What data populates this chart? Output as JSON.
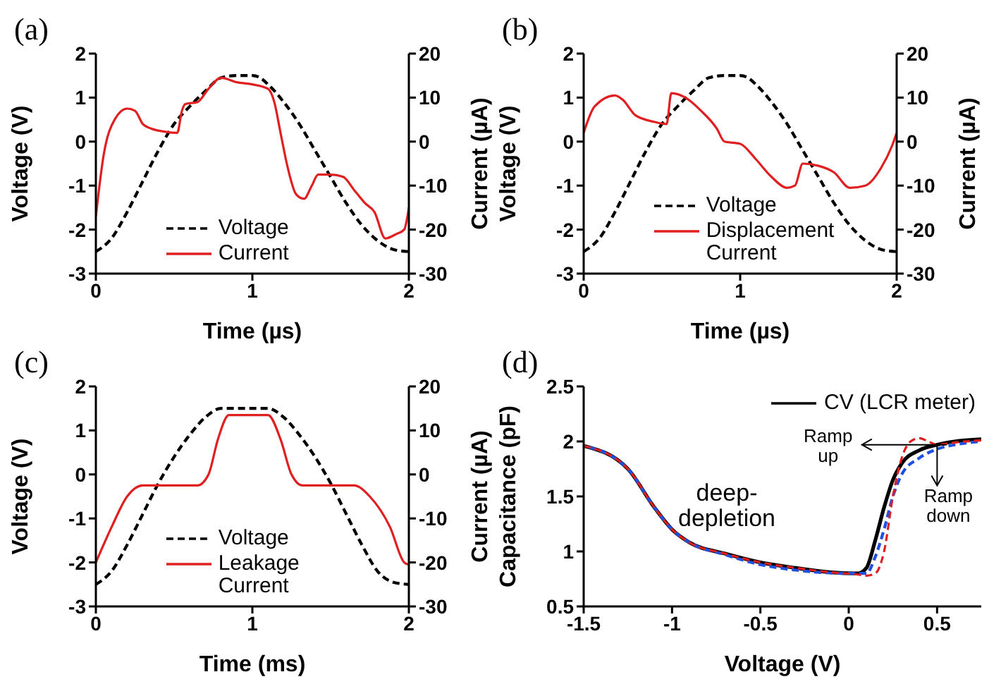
{
  "chart_data": [
    {
      "type": "line",
      "title": "(a)",
      "xlabel": "Time (µs)",
      "ylabel": "Voltage (V)",
      "y2label": "Current (µA)",
      "xlim": [
        0,
        2
      ],
      "xticks": [
        0,
        1,
        2
      ],
      "ylim": [
        -3,
        2
      ],
      "yticks": [
        -3,
        -2,
        -1,
        0,
        1,
        2
      ],
      "y2lim": [
        -30,
        20
      ],
      "y2ticks": [
        -30,
        -20,
        -10,
        0,
        10,
        20
      ],
      "legend": "bottom",
      "marker": "none",
      "series": [
        {
          "name": "Voltage",
          "color": "#000000",
          "line_style": "dashed",
          "x": [
            0,
            0.1,
            0.2,
            0.3,
            0.4,
            0.5,
            0.6,
            0.7,
            0.8,
            0.9,
            1.0,
            1.05,
            1.1,
            1.2,
            1.3,
            1.4,
            1.5,
            1.6,
            1.7,
            1.8,
            1.9,
            2.0
          ],
          "values": [
            -2.5,
            -2.2,
            -1.6,
            -0.9,
            -0.2,
            0.4,
            0.8,
            1.15,
            1.45,
            1.5,
            1.5,
            1.45,
            1.3,
            0.9,
            0.4,
            -0.2,
            -0.8,
            -1.4,
            -1.9,
            -2.25,
            -2.45,
            -2.5
          ]
        },
        {
          "name": "Current",
          "color": "#e02020",
          "line_style": "solid",
          "axis": "y2",
          "x": [
            0,
            0.05,
            0.12,
            0.2,
            0.25,
            0.3,
            0.35,
            0.45,
            0.52,
            0.55,
            0.57,
            0.65,
            0.72,
            0.8,
            0.9,
            1.0,
            1.1,
            1.14,
            1.18,
            1.22,
            1.28,
            1.33,
            1.38,
            1.42,
            1.5,
            1.58,
            1.65,
            1.72,
            1.78,
            1.85,
            1.92,
            1.97,
            2.0
          ],
          "values": [
            -17,
            -3,
            5,
            7.5,
            7,
            4,
            3,
            2.2,
            2,
            7,
            8.5,
            9,
            12,
            14.5,
            13.5,
            13,
            12,
            9,
            2,
            -5,
            -12,
            -13,
            -10,
            -7.5,
            -7.5,
            -8,
            -11,
            -14,
            -16,
            -22,
            -21,
            -20,
            -15
          ]
        }
      ]
    },
    {
      "type": "line",
      "title": "(b)",
      "xlabel": "Time (µs)",
      "ylabel": "Voltage (V)",
      "y2label": "Current (µA)",
      "xlim": [
        0,
        2
      ],
      "xticks": [
        0,
        1,
        2
      ],
      "ylim": [
        -3,
        2
      ],
      "yticks": [
        -3,
        -2,
        -1,
        0,
        1,
        2
      ],
      "y2lim": [
        -30,
        20
      ],
      "y2ticks": [
        -30,
        -20,
        -10,
        0,
        10,
        20
      ],
      "legend": "bottom",
      "marker": "none",
      "series": [
        {
          "name": "Voltage",
          "color": "#000000",
          "line_style": "dashed",
          "x": [
            0,
            0.1,
            0.2,
            0.3,
            0.4,
            0.5,
            0.6,
            0.7,
            0.8,
            0.9,
            1.0,
            1.05,
            1.1,
            1.2,
            1.3,
            1.4,
            1.5,
            1.6,
            1.7,
            1.8,
            1.9,
            2.0
          ],
          "values": [
            -2.5,
            -2.2,
            -1.6,
            -0.9,
            -0.2,
            0.4,
            0.8,
            1.15,
            1.45,
            1.5,
            1.5,
            1.45,
            1.3,
            0.9,
            0.4,
            -0.2,
            -0.8,
            -1.4,
            -1.9,
            -2.25,
            -2.45,
            -2.5
          ]
        },
        {
          "name": "Displacement Current",
          "color": "#e02020",
          "line_style": "solid",
          "axis": "y2",
          "x": [
            0,
            0.07,
            0.2,
            0.25,
            0.33,
            0.45,
            0.53,
            0.56,
            0.65,
            0.75,
            0.85,
            0.9,
            1.0,
            1.1,
            1.2,
            1.3,
            1.35,
            1.4,
            1.5,
            1.6,
            1.7,
            1.8,
            1.9,
            1.97,
            2.0
          ],
          "values": [
            2,
            8,
            10.5,
            9.5,
            6,
            4.5,
            4,
            11,
            10,
            7,
            3,
            0,
            -0.5,
            -4,
            -8,
            -10.5,
            -10,
            -5,
            -5.5,
            -7,
            -10.5,
            -10,
            -6,
            -1,
            2
          ]
        }
      ]
    },
    {
      "type": "line",
      "title": "(c)",
      "xlabel": "Time (ms)",
      "ylabel": "Voltage (V)",
      "y2label": "Current (µA)",
      "xlim": [
        0,
        2
      ],
      "xticks": [
        0,
        1,
        2
      ],
      "ylim": [
        -3,
        2
      ],
      "yticks": [
        -3,
        -2,
        -1,
        0,
        1,
        2
      ],
      "y2lim": [
        -30,
        20
      ],
      "y2ticks": [
        -30,
        -20,
        -10,
        0,
        10,
        20
      ],
      "legend": "bottom",
      "marker": "none",
      "series": [
        {
          "name": "Voltage",
          "color": "#000000",
          "line_style": "dashed",
          "x": [
            0,
            0.1,
            0.2,
            0.3,
            0.4,
            0.5,
            0.6,
            0.7,
            0.8,
            0.9,
            1.0,
            1.1,
            1.2,
            1.3,
            1.4,
            1.5,
            1.6,
            1.7,
            1.8,
            1.9,
            2.0
          ],
          "values": [
            -2.5,
            -2.2,
            -1.6,
            -0.9,
            -0.2,
            0.4,
            0.9,
            1.3,
            1.5,
            1.5,
            1.5,
            1.5,
            1.3,
            0.9,
            0.4,
            -0.2,
            -0.9,
            -1.6,
            -2.2,
            -2.45,
            -2.5
          ]
        },
        {
          "name": "Leakage Current",
          "color": "#e02020",
          "line_style": "solid",
          "axis": "y2",
          "x": [
            0,
            0.1,
            0.2,
            0.3,
            0.5,
            0.65,
            0.72,
            0.78,
            0.85,
            1.0,
            1.1,
            1.18,
            1.25,
            1.32,
            1.5,
            1.65,
            1.75,
            1.88,
            1.97,
            2.0
          ],
          "values": [
            -20,
            -12,
            -5,
            -2.5,
            -2.5,
            -2.5,
            0,
            8,
            13.5,
            13.5,
            13.5,
            8,
            0,
            -2.5,
            -2.5,
            -2.5,
            -5,
            -12,
            -20,
            -20.5
          ]
        }
      ]
    },
    {
      "type": "line",
      "title": "(d)",
      "xlabel": "Voltage (V)",
      "ylabel": "Capacitance (pF)",
      "xlim": [
        -1.5,
        0.75
      ],
      "xticks": [
        -1.5,
        -1,
        -0.5,
        0,
        0.5
      ],
      "ylim": [
        0.5,
        2.5
      ],
      "yticks": [
        0.5,
        1,
        1.5,
        2,
        2.5
      ],
      "legend": "top right",
      "marker": "none",
      "annotations": [
        "Ramp up",
        "Ramp down",
        "deep-depletion"
      ],
      "series": [
        {
          "name": "CV (LCR meter)",
          "color": "#000000",
          "line_style": "solid",
          "x": [
            -1.5,
            -1.25,
            -1.1,
            -1.0,
            -0.9,
            -0.7,
            -0.5,
            -0.3,
            -0.1,
            0.05,
            0.1,
            0.15,
            0.2,
            0.25,
            0.3,
            0.4,
            0.5,
            0.6,
            0.75
          ],
          "values": [
            1.96,
            1.75,
            1.4,
            1.2,
            1.08,
            0.98,
            0.9,
            0.85,
            0.81,
            0.8,
            0.85,
            1.1,
            1.4,
            1.65,
            1.8,
            1.92,
            1.97,
            2.0,
            2.02
          ]
        },
        {
          "color": "#2050e0",
          "line_style": "dashed",
          "x": [
            -1.5,
            -1.25,
            -1.1,
            -1.0,
            -0.9,
            -0.7,
            -0.5,
            -0.3,
            0,
            0.1,
            0.15,
            0.2,
            0.25,
            0.3,
            0.4,
            0.5,
            0.6,
            0.75
          ],
          "values": [
            1.96,
            1.75,
            1.4,
            1.2,
            1.08,
            0.97,
            0.88,
            0.83,
            0.8,
            0.8,
            0.95,
            1.2,
            1.5,
            1.7,
            1.85,
            1.93,
            1.97,
            2.0
          ]
        },
        {
          "color": "#e02020",
          "line_style": "dashed",
          "x": [
            -1.5,
            -1.25,
            -1.1,
            -1.0,
            -0.9,
            -0.7,
            -0.5,
            -0.3,
            -0.1,
            0.05,
            0.1,
            0.15,
            0.2,
            0.25,
            0.3,
            0.35,
            0.4,
            0.45,
            0.5,
            0.6,
            0.75
          ],
          "values": [
            1.96,
            1.75,
            1.4,
            1.2,
            1.08,
            0.98,
            0.9,
            0.85,
            0.81,
            0.79,
            0.78,
            0.8,
            1.0,
            1.5,
            1.85,
            2.0,
            2.03,
            2.0,
            1.97,
            1.99,
            2.01
          ]
        }
      ]
    }
  ]
}
